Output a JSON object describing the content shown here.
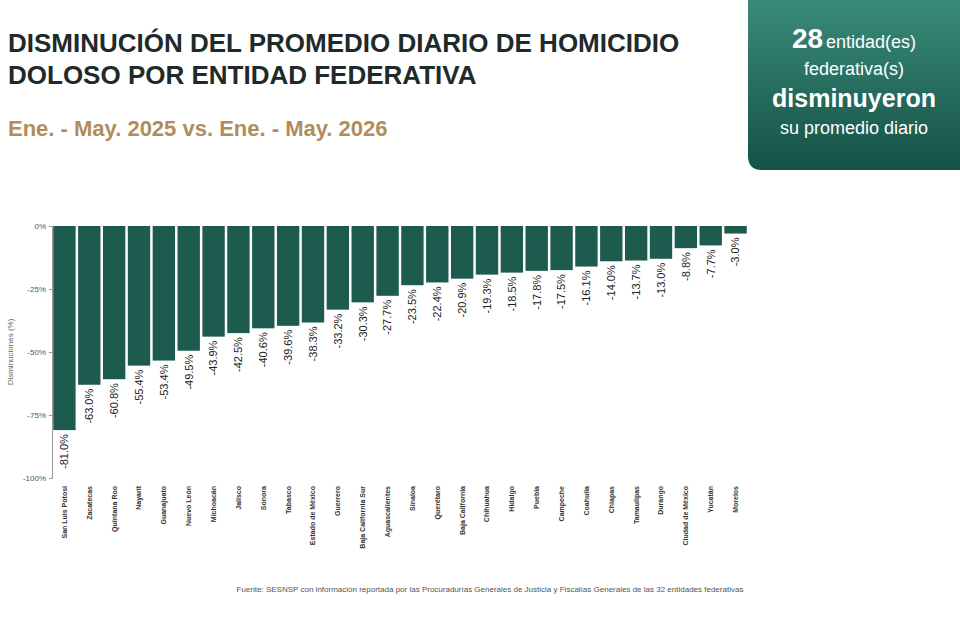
{
  "chart_data": {
    "type": "bar",
    "title": "DISMINUCIÓN DEL PROMEDIO DIARIO DE HOMICIDIO DOLOSO POR ENTIDAD FEDERATIVA",
    "subtitle": "Ene. - May. 2025 vs. Ene. - May. 2026",
    "y_label": "Disminuciones (%)",
    "annotations": [
      "28",
      "entidad(es)",
      "federativa(s)",
      "disminuyeron",
      "su promedio diario",
      "Fuente: SESNSP con información reportada por las Procuradurías Generales de Justicia y Fiscalías Generales de las 32 entidades federativas"
    ],
    "categories": [
      "San Luis Potosí",
      "Zacatecas",
      "Quintana Roo",
      "Nayarit",
      "Guanajuato",
      "Nuevo León",
      "Michoacán",
      "Jalisco",
      "Sonora",
      "Tabasco",
      "Estado de México",
      "Guerrero",
      "Baja California Sur",
      "Aguascalientes",
      "Sinaloa",
      "Querétaro",
      "Baja California",
      "Chihuahua",
      "Hidalgo",
      "Puebla",
      "Campeche",
      "Coahuila",
      "Chiapas",
      "Tamaulipas",
      "Durango",
      "Ciudad de México",
      "Yucatán",
      "Morelos"
    ],
    "values": [
      -81.0,
      -63.0,
      -60.8,
      -55.4,
      -53.4,
      -49.5,
      -43.9,
      -42.5,
      -40.6,
      -39.6,
      -38.3,
      -33.2,
      -30.3,
      -27.7,
      -23.5,
      -22.4,
      -20.9,
      -19.3,
      -18.5,
      -17.8,
      -17.5,
      -16.1,
      -14.0,
      -13.7,
      -13.0,
      -8.8,
      -7.7,
      -3.0
    ],
    "value_labels": [
      "-81.0%",
      "-63.0%",
      "-60.8%",
      "-55.4%",
      "-53.4%",
      "-49.5%",
      "-43.9%",
      "-42.5%",
      "-40.6%",
      "-39.6%",
      "-38.3%",
      "-33.2%",
      "-30.3%",
      "-27.7%",
      "-23.5%",
      "-22.4%",
      "-20.9%",
      "-19.3%",
      "-18.5%",
      "-17.8%",
      "-17.5%",
      "-16.1%",
      "-14.0%",
      "-13.7%",
      "-13.0%",
      "-8.8%",
      "-7.7%",
      "-3.0%"
    ],
    "color": "#1e5b4f",
    "ylim": [
      -100,
      0
    ],
    "yticks": [
      {
        "value": 0,
        "label": "0%"
      },
      {
        "value": -25,
        "label": "-25%"
      },
      {
        "value": -50,
        "label": "-50%"
      },
      {
        "value": -75,
        "label": "-75%"
      },
      {
        "value": -100,
        "label": "-100%"
      }
    ],
    "grid": false,
    "data_labels": true
  }
}
